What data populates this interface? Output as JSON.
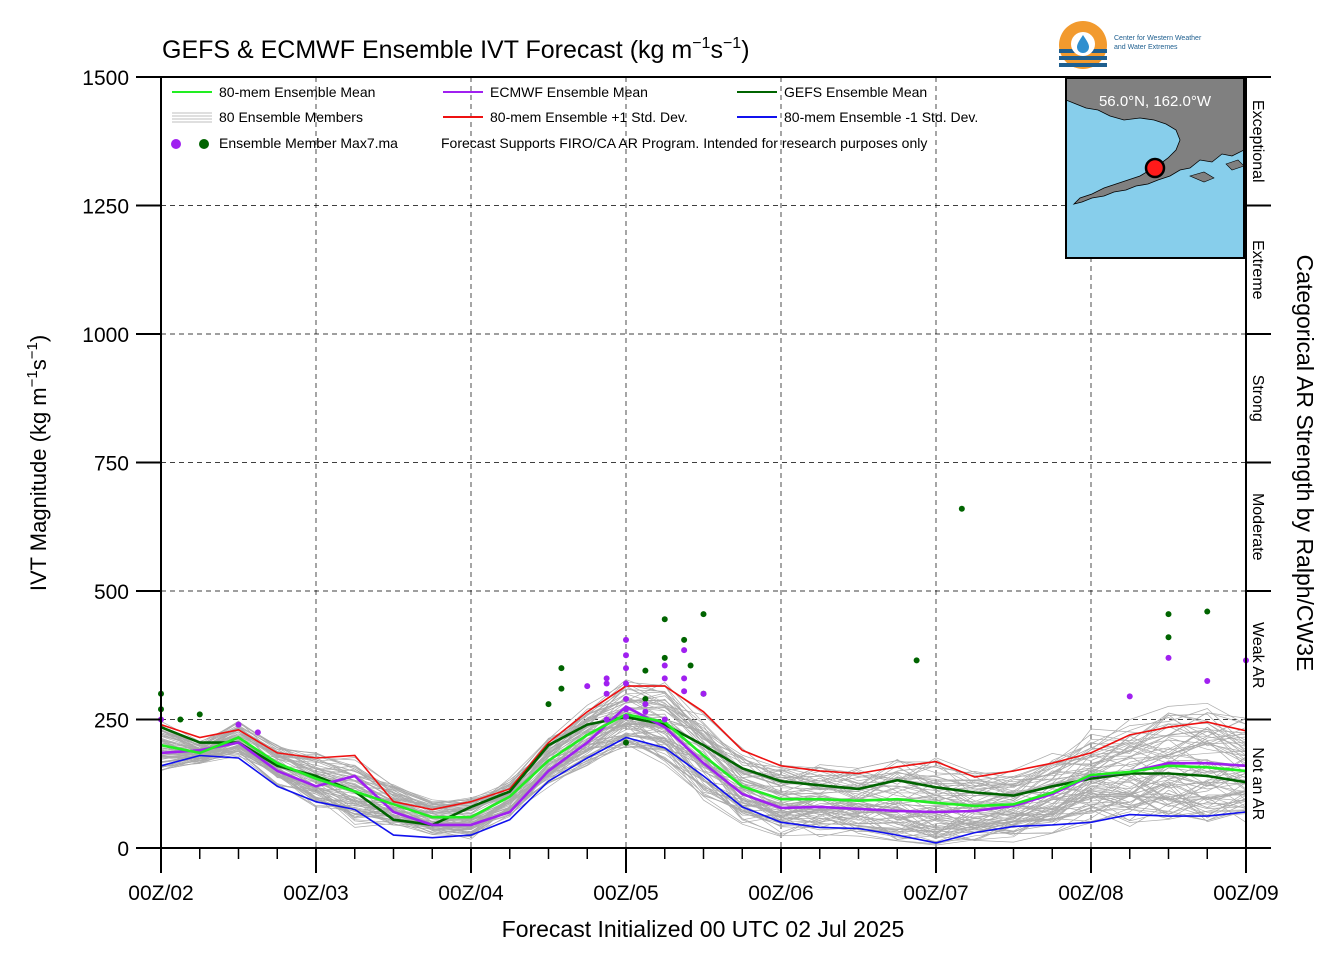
{
  "chart_data": {
    "type": "line",
    "title_prefix": "GEFS & ECMWF Ensemble IVT Forecast (kg m",
    "title_exp1": "−1",
    "title_mid": "s",
    "title_exp2": "−1",
    "title_suffix": ")",
    "xlabel": "Forecast Initialized 00 UTC 02 Jul 2025",
    "ylabel_prefix": "IVT Magnitude (kg m",
    "ylabel_exp1": "−1",
    "ylabel_mid": "s",
    "ylabel_exp2": "−1",
    "ylabel_suffix": ")",
    "right_label": "Categorical AR Strength by Ralph/CW3E",
    "x_range_hours": [
      0,
      168
    ],
    "ylim": [
      0,
      1500
    ],
    "x_tick_labels": [
      "00Z/02",
      "00Z/03",
      "00Z/04",
      "00Z/05",
      "00Z/06",
      "00Z/07",
      "00Z/08",
      "00Z/09"
    ],
    "y_tick_labels": [
      "0",
      "250",
      "500",
      "750",
      "1000",
      "1250",
      "1500"
    ],
    "y_ticks": [
      0,
      250,
      500,
      750,
      1000,
      1250,
      1500
    ],
    "grid": true,
    "categories": [
      {
        "label": "Not an AR",
        "low": 0,
        "high": 250
      },
      {
        "label": "Weak AR",
        "low": 250,
        "high": 500
      },
      {
        "label": "Moderate",
        "low": 500,
        "high": 750
      },
      {
        "label": "Strong",
        "low": 750,
        "high": 1000
      },
      {
        "label": "Extreme",
        "low": 1000,
        "high": 1250
      },
      {
        "label": "Exceptional",
        "low": 1250,
        "high": 1500
      }
    ],
    "legend": {
      "mean80": "80-mem Ensemble Mean",
      "members": "80 Ensemble Members",
      "max_points": "Ensemble Member Max7.ma",
      "ecmwf_mean": "ECMWF Ensemble Mean",
      "plus_std": "80-mem Ensemble +1 Std. Dev.",
      "gefs_mean": "GEFS Ensemble Mean",
      "minus_std": "80-mem Ensemble -1 Std. Dev.",
      "disclaimer": "Forecast Supports FIRO/CA AR Program. Intended for research purposes only"
    },
    "inset_location": "56.0°N, 162.0°W",
    "logo_text_line1": "Center for Western Weather",
    "logo_text_line2": "and Water Extremes",
    "colors": {
      "mean80": "#22ee22",
      "ecmwf_mean": "#a020f0",
      "gefs_mean": "#006400",
      "plus_std": "#ee1111",
      "minus_std": "#1111ee",
      "members": "#aaaaaa",
      "inset_ocean": "#87ceeb",
      "inset_land": "#808080"
    },
    "series": [
      {
        "key": "mean80",
        "x": [
          0,
          6,
          12,
          18,
          24,
          30,
          36,
          42,
          48,
          54,
          60,
          66,
          72,
          78,
          84,
          90,
          96,
          102,
          108,
          114,
          120,
          126,
          132,
          138,
          144,
          150,
          156,
          162,
          168
        ],
        "y": [
          200,
          185,
          215,
          165,
          135,
          110,
          85,
          60,
          60,
          100,
          170,
          220,
          260,
          245,
          180,
          120,
          95,
          95,
          92,
          95,
          88,
          82,
          85,
          108,
          142,
          148,
          160,
          157,
          150
        ]
      },
      {
        "key": "ecmwf_mean",
        "x": [
          0,
          6,
          12,
          18,
          24,
          30,
          36,
          42,
          48,
          54,
          60,
          66,
          72,
          78,
          84,
          90,
          96,
          102,
          108,
          114,
          120,
          126,
          132,
          138,
          144,
          150,
          156,
          162,
          168
        ],
        "y": [
          185,
          190,
          205,
          150,
          120,
          140,
          70,
          45,
          45,
          70,
          150,
          205,
          275,
          235,
          165,
          105,
          78,
          80,
          76,
          72,
          70,
          72,
          82,
          105,
          140,
          148,
          165,
          165,
          160
        ]
      },
      {
        "key": "gefs_mean",
        "x": [
          0,
          6,
          12,
          18,
          24,
          30,
          36,
          42,
          48,
          54,
          60,
          66,
          72,
          78,
          84,
          90,
          96,
          102,
          108,
          114,
          120,
          126,
          132,
          138,
          144,
          150,
          156,
          162,
          168
        ],
        "y": [
          235,
          205,
          205,
          160,
          140,
          110,
          55,
          45,
          80,
          110,
          200,
          240,
          255,
          240,
          200,
          155,
          130,
          122,
          115,
          132,
          118,
          108,
          102,
          120,
          135,
          145,
          145,
          140,
          128
        ]
      },
      {
        "key": "plus_std",
        "x": [
          0,
          6,
          12,
          18,
          24,
          30,
          36,
          42,
          48,
          54,
          60,
          66,
          72,
          78,
          84,
          90,
          96,
          102,
          108,
          114,
          120,
          126,
          132,
          138,
          144,
          150,
          156,
          162,
          168
        ],
        "y": [
          240,
          215,
          230,
          185,
          175,
          180,
          90,
          75,
          90,
          115,
          205,
          265,
          315,
          315,
          265,
          190,
          160,
          150,
          145,
          158,
          168,
          138,
          150,
          165,
          185,
          220,
          235,
          245,
          228
        ]
      },
      {
        "key": "minus_std",
        "x": [
          0,
          6,
          12,
          18,
          24,
          30,
          36,
          42,
          48,
          54,
          60,
          66,
          72,
          78,
          84,
          90,
          96,
          102,
          108,
          114,
          120,
          126,
          132,
          138,
          144,
          150,
          156,
          162,
          168
        ],
        "y": [
          160,
          180,
          175,
          120,
          90,
          75,
          25,
          20,
          25,
          55,
          130,
          175,
          215,
          195,
          140,
          80,
          50,
          40,
          38,
          25,
          10,
          30,
          42,
          45,
          50,
          65,
          62,
          62,
          70
        ]
      }
    ],
    "max_points_gefs": [
      [
        0,
        300
      ],
      [
        0,
        270
      ],
      [
        3,
        250
      ],
      [
        6,
        260
      ],
      [
        60,
        280
      ],
      [
        62,
        310
      ],
      [
        62,
        350
      ],
      [
        72,
        205
      ],
      [
        75,
        345
      ],
      [
        75,
        290
      ],
      [
        78,
        370
      ],
      [
        78,
        445
      ],
      [
        81,
        405
      ],
      [
        82,
        355
      ],
      [
        84,
        455
      ],
      [
        84,
        300
      ],
      [
        117,
        365
      ],
      [
        124,
        660
      ],
      [
        156,
        455
      ],
      [
        156,
        410
      ],
      [
        162,
        460
      ]
    ],
    "max_points_ecmwf": [
      [
        0,
        250
      ],
      [
        12,
        240
      ],
      [
        15,
        225
      ],
      [
        66,
        315
      ],
      [
        69,
        320
      ],
      [
        69,
        300
      ],
      [
        69,
        330
      ],
      [
        69,
        250
      ],
      [
        72,
        405
      ],
      [
        72,
        375
      ],
      [
        72,
        350
      ],
      [
        72,
        320
      ],
      [
        72,
        290
      ],
      [
        72,
        270
      ],
      [
        72,
        255
      ],
      [
        75,
        280
      ],
      [
        75,
        265
      ],
      [
        78,
        355
      ],
      [
        78,
        330
      ],
      [
        78,
        250
      ],
      [
        81,
        385
      ],
      [
        81,
        330
      ],
      [
        81,
        305
      ],
      [
        84,
        300
      ],
      [
        150,
        295
      ],
      [
        156,
        370
      ],
      [
        162,
        325
      ],
      [
        168,
        365
      ]
    ]
  }
}
